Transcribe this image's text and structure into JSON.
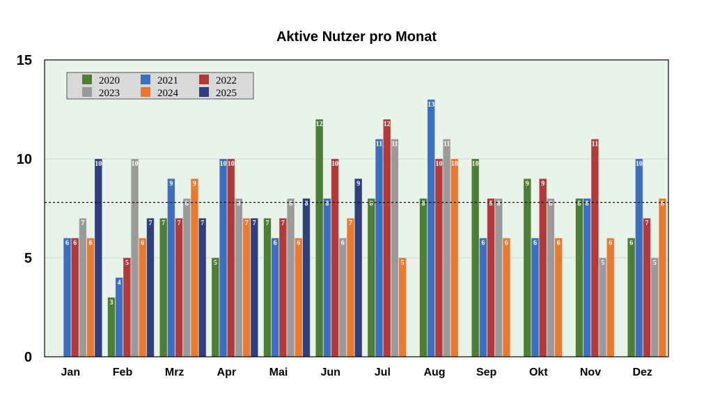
{
  "chart_data": {
    "type": "bar",
    "title": "Aktive Nutzer pro Monat",
    "xlabel": "",
    "ylabel": "",
    "ylim": [
      0,
      15
    ],
    "yticks": [
      0,
      5,
      10,
      15
    ],
    "reference_line": 7.8,
    "grid": true,
    "legend_position": "top-left",
    "background_color": "#e8f3ea",
    "categories": [
      "Jan",
      "Feb",
      "Mrz",
      "Apr",
      "Mai",
      "Jun",
      "Jul",
      "Aug",
      "Sep",
      "Okt",
      "Nov",
      "Dez"
    ],
    "series": [
      {
        "name": "2020",
        "color": "#4e7d36",
        "values": [
          null,
          3,
          7,
          5,
          7,
          12,
          8,
          8,
          10,
          9,
          8,
          6
        ]
      },
      {
        "name": "2021",
        "color": "#3d6fbf",
        "values": [
          6,
          4,
          9,
          10,
          6,
          8,
          11,
          13,
          6,
          6,
          8,
          10
        ]
      },
      {
        "name": "2022",
        "color": "#b23a3a",
        "values": [
          6,
          5,
          7,
          10,
          7,
          10,
          12,
          10,
          8,
          9,
          11,
          7
        ]
      },
      {
        "name": "2023",
        "color": "#9a9a9a",
        "values": [
          7,
          10,
          8,
          8,
          8,
          6,
          11,
          11,
          8,
          8,
          5,
          5
        ]
      },
      {
        "name": "2024",
        "color": "#e77a30",
        "values": [
          6,
          6,
          9,
          7,
          6,
          7,
          5,
          10,
          6,
          6,
          6,
          8
        ]
      },
      {
        "name": "2025",
        "color": "#2e3f7e",
        "values": [
          10,
          7,
          7,
          7,
          8,
          9,
          null,
          null,
          null,
          null,
          null,
          null
        ]
      }
    ]
  }
}
